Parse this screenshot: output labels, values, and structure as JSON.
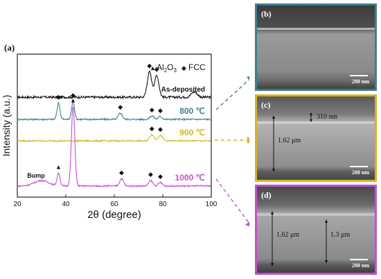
{
  "panel_a_label": "(a)",
  "colors": {
    "b_border": "#3d7f8f",
    "c_border": "#d7b424",
    "d_border": "#c84ed2"
  },
  "chart_data": {
    "type": "line",
    "xlabel": "2θ (degree)",
    "ylabel": "Intensity (a.u.)",
    "xlim": [
      20,
      100
    ],
    "xticks": [
      "20",
      "40",
      "60",
      "80",
      "100"
    ],
    "legend": [
      {
        "symbol": "▲",
        "label": "Al",
        "sub": "2",
        "label2": "O",
        "sub2": "3"
      },
      {
        "symbol": "◆",
        "label": "FCC"
      }
    ],
    "series": [
      {
        "name": "As-deposited",
        "color": "#111111",
        "offset": 0,
        "peaks": [
          [
            74.5,
            14,
            0.9
          ],
          [
            77.5,
            12,
            0.9
          ],
          [
            93,
            3,
            1.2
          ]
        ],
        "noise": 1.3,
        "markers": [
          {
            "x": 74.5,
            "sym": "◆"
          },
          {
            "x": 77.5,
            "sym": "◆"
          }
        ]
      },
      {
        "name": "800 ℃",
        "color": "#3d7f8f",
        "offset": 1,
        "peaks": [
          [
            37,
            9,
            0.6
          ],
          [
            43,
            10,
            0.6
          ],
          [
            62.5,
            3.5,
            0.8
          ],
          [
            75.5,
            2,
            0.8
          ],
          [
            79,
            1.5,
            0.8
          ]
        ],
        "noise": 0.9,
        "markers": [
          {
            "x": 37,
            "sym": "◆"
          },
          {
            "x": 43,
            "sym": "◆"
          },
          {
            "x": 62.5,
            "sym": "◆"
          },
          {
            "x": 75.5,
            "sym": "◆"
          },
          {
            "x": 79,
            "sym": "◆"
          }
        ]
      },
      {
        "name": "900 ℃",
        "color": "#d7b424",
        "offset": 2,
        "peaks": [
          [
            75.5,
            3.5,
            0.9
          ],
          [
            79,
            3,
            0.9
          ]
        ],
        "noise": 0.8,
        "markers": [
          {
            "x": 75.5,
            "sym": "◆"
          },
          {
            "x": 79,
            "sym": "◆"
          }
        ]
      },
      {
        "name": "1000 ℃",
        "color": "#c84ed2",
        "offset": 3,
        "peaks": [
          [
            30,
            3,
            3
          ],
          [
            37,
            7,
            0.6
          ],
          [
            43,
            44,
            0.7
          ],
          [
            63,
            4,
            0.8
          ],
          [
            75,
            3,
            0.8
          ],
          [
            79,
            2,
            0.8
          ]
        ],
        "noise": 0.8,
        "markers": [
          {
            "x": 37,
            "sym": "▲"
          },
          {
            "x": 43,
            "sym": "▲"
          },
          {
            "x": 63,
            "sym": "◆"
          },
          {
            "x": 75,
            "sym": "◆"
          },
          {
            "x": 79,
            "sym": "◆"
          }
        ],
        "annotation": {
          "text": "Bump",
          "x": 30
        }
      }
    ]
  },
  "panels": [
    {
      "id": "b",
      "label": "(b)",
      "scale": "200 nm",
      "measurements": []
    },
    {
      "id": "c",
      "label": "(c)",
      "scale": "200 nm",
      "measurements": [
        "310 nm",
        "1.62 μm"
      ]
    },
    {
      "id": "d",
      "label": "(d)",
      "scale": "200 nm",
      "measurements": [
        "1.62 μm",
        "1.3 μm"
      ]
    }
  ]
}
